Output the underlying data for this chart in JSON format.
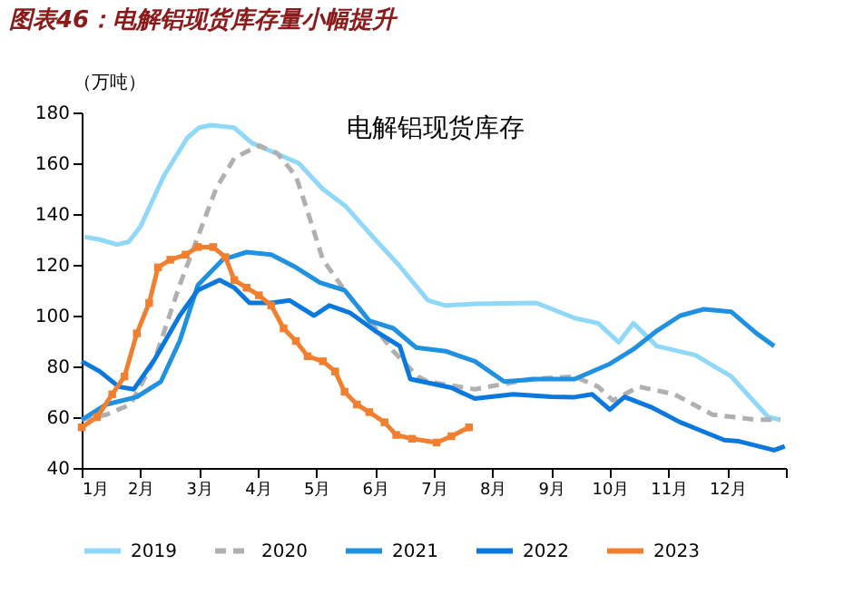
{
  "chart_data": {
    "type": "line",
    "title": "图表46：电解铝现货库存量小幅提升",
    "subtitle": "电解铝现货库存",
    "ylabel": "（万吨）",
    "xlim": [
      1,
      13
    ],
    "xticks": [
      {
        "value": 1,
        "label": "1月"
      },
      {
        "value": 2,
        "label": "2月"
      },
      {
        "value": 3,
        "label": "3月"
      },
      {
        "value": 4,
        "label": "4月"
      },
      {
        "value": 5,
        "label": "5月"
      },
      {
        "value": 6,
        "label": "6月"
      },
      {
        "value": 7,
        "label": "7月"
      },
      {
        "value": 8,
        "label": "8月"
      },
      {
        "value": 9,
        "label": "9月"
      },
      {
        "value": 10,
        "label": "10月"
      },
      {
        "value": 11,
        "label": "11月"
      },
      {
        "value": 12,
        "label": "12月"
      },
      {
        "value": 13,
        "label": null
      }
    ],
    "ylim": [
      40,
      180
    ],
    "yticks": [
      40,
      60,
      80,
      100,
      120,
      140,
      160,
      180
    ],
    "grid": false,
    "legend": "bottom",
    "series": [
      {
        "name": "2019",
        "color": "#8fd8f8",
        "line_style": "solid",
        "x": [
          1.05,
          1.3,
          1.6,
          1.8,
          2.0,
          2.4,
          2.8,
          3.0,
          3.2,
          3.6,
          3.9,
          4.3,
          4.7,
          5.1,
          5.5,
          6.0,
          6.4,
          6.9,
          7.2,
          7.7,
          8.75,
          9.4,
          9.8,
          10.15,
          10.4,
          10.8,
          11.45,
          12.07,
          12.7,
          12.9
        ],
        "values": [
          131,
          130,
          128,
          129,
          135,
          155,
          170,
          174,
          175,
          174,
          168,
          164,
          160,
          150,
          143,
          130,
          120,
          106,
          104,
          104.6,
          105,
          99,
          97,
          89.5,
          97,
          88,
          84.5,
          76,
          60,
          59
        ]
      },
      {
        "name": "2020",
        "color": "#b0b0b0",
        "line_style": "dashed",
        "x": [
          1.0,
          1.42,
          1.83,
          2.25,
          2.67,
          2.98,
          3.29,
          3.6,
          4.02,
          4.33,
          4.65,
          4.85,
          5.11,
          5.48,
          5.9,
          6.31,
          6.73,
          6.9,
          7.7,
          8.65,
          9.4,
          9.8,
          10.05,
          10.5,
          11.1,
          11.75,
          12.5,
          12.9
        ],
        "values": [
          59,
          61,
          65,
          83,
          112,
          131,
          150,
          162,
          167,
          164,
          155,
          141,
          122,
          110,
          98,
          86,
          76,
          74,
          71,
          75,
          76,
          72,
          66.6,
          72,
          69,
          61,
          59,
          59
        ]
      },
      {
        "name": "2021",
        "color": "#2090e0",
        "line_style": "solid",
        "x": [
          1.0,
          1.42,
          1.94,
          2.35,
          2.67,
          2.98,
          3.4,
          3.81,
          4.23,
          4.65,
          5.06,
          5.48,
          5.9,
          6.31,
          6.7,
          7.2,
          7.7,
          8.2,
          8.75,
          9.4,
          10.0,
          10.4,
          10.8,
          11.2,
          11.6,
          12.07,
          12.5,
          12.8
        ],
        "values": [
          59,
          65,
          68,
          74,
          90,
          112,
          122,
          125,
          124,
          119,
          113,
          110,
          98,
          95,
          87.4,
          86,
          82,
          74,
          75,
          75,
          81,
          86.7,
          94,
          100,
          102.5,
          101.5,
          93,
          88
        ]
      },
      {
        "name": "2022",
        "color": "#0a78dc",
        "line_style": "solid",
        "x": [
          1.0,
          1.31,
          1.63,
          1.89,
          2.25,
          2.67,
          2.98,
          3.35,
          3.6,
          3.86,
          4.23,
          4.54,
          4.96,
          5.22,
          5.58,
          6.0,
          6.42,
          6.6,
          7.3,
          7.7,
          8.35,
          9.0,
          9.4,
          9.7,
          10.0,
          10.25,
          10.7,
          11.2,
          11.95,
          12.2,
          12.8,
          12.98
        ],
        "values": [
          82,
          78,
          72,
          71,
          83,
          100,
          110,
          114,
          111,
          105,
          105,
          106,
          100,
          104,
          101,
          94,
          88,
          75,
          71.6,
          67.3,
          69,
          68,
          67.9,
          69,
          63,
          68,
          64,
          58,
          51,
          50.5,
          47,
          48.5
        ]
      },
      {
        "name": "2023",
        "color": "#f08030",
        "line_style": "solid",
        "marker": "square",
        "x": [
          1.0,
          1.26,
          1.52,
          1.73,
          1.94,
          2.15,
          2.3,
          2.51,
          2.77,
          2.98,
          3.24,
          3.45,
          3.6,
          3.81,
          4.02,
          4.23,
          4.44,
          4.65,
          4.85,
          5.11,
          5.32,
          5.48,
          5.69,
          5.9,
          6.16,
          6.36,
          6.63,
          7.05,
          7.3,
          7.6
        ],
        "values": [
          56,
          60,
          69,
          76,
          93,
          105,
          119,
          122,
          124,
          127,
          127,
          123,
          114,
          111,
          108,
          104,
          95,
          90,
          84,
          82,
          78,
          70,
          65,
          62,
          58,
          53,
          51.5,
          50,
          52.5,
          56
        ]
      }
    ]
  }
}
